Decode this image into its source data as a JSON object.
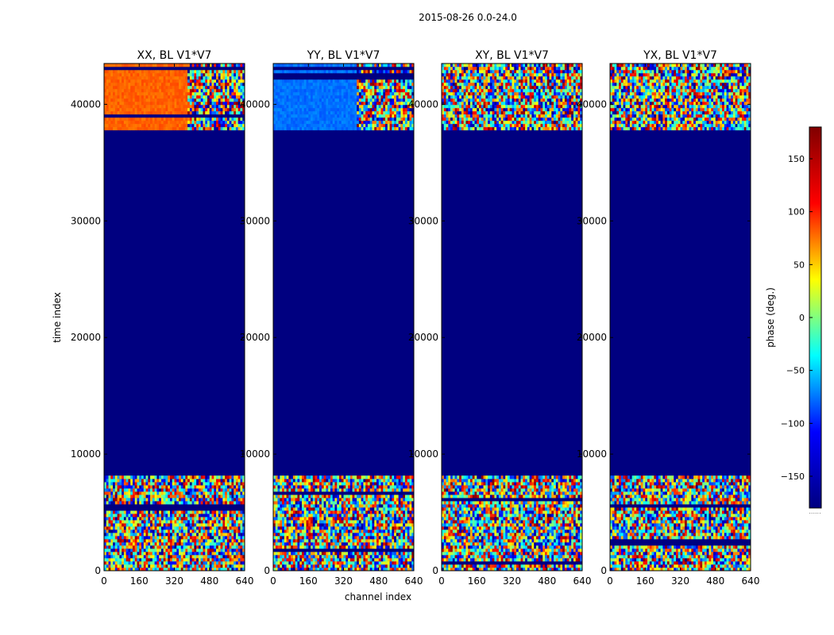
{
  "chart_data": {
    "type": "heatmap",
    "suptitle": "2015-08-26 0.0-24.0",
    "xlabel": "channel index",
    "ylabel": "time index",
    "xlim": [
      0,
      640
    ],
    "ylim": [
      0,
      43500
    ],
    "xticks": [
      0,
      160,
      320,
      480,
      640
    ],
    "yticks": [
      0,
      10000,
      20000,
      30000,
      40000
    ],
    "panels": [
      {
        "title": "XX, BL V1*V7",
        "product": "XX",
        "fixed_phase": 100
      },
      {
        "title": "YY, BL V1*V7",
        "product": "YY",
        "fixed_phase": -95
      },
      {
        "title": "XY, BL V1*V7",
        "product": "XY",
        "fixed_phase": null
      },
      {
        "title": "YX, BL V1*V7",
        "product": "YX",
        "fixed_phase": null
      }
    ],
    "flagged_time_ranges": [
      [
        35000,
        37800
      ],
      [
        24200,
        35000
      ],
      [
        15200,
        24200
      ],
      [
        8200,
        15200
      ]
    ],
    "flagged_value": -180,
    "flagged_gaps": [
      [
        15200,
        24200
      ],
      [
        8200,
        15200
      ],
      [
        35000,
        37800
      ],
      [
        24200,
        35000
      ]
    ],
    "masked_blocks": [
      [
        24200,
        35000
      ],
      [
        8200,
        15200
      ]
    ],
    "colorbar": {
      "label": "phase (deg.)",
      "vmin": -180,
      "vmax": 180,
      "ticks": [
        150,
        100,
        50,
        0,
        -50,
        -100,
        -150
      ],
      "tick_labels": [
        "150",
        "100",
        "50",
        "0",
        "−50",
        "−100",
        "−150"
      ],
      "colormap": "jet",
      "footnote": "......"
    },
    "colors": {
      "masked": "#000080",
      "jet_stops": [
        "#000080",
        "#0000ff",
        "#00ffff",
        "#ffff00",
        "#ff0000",
        "#800000"
      ]
    }
  }
}
